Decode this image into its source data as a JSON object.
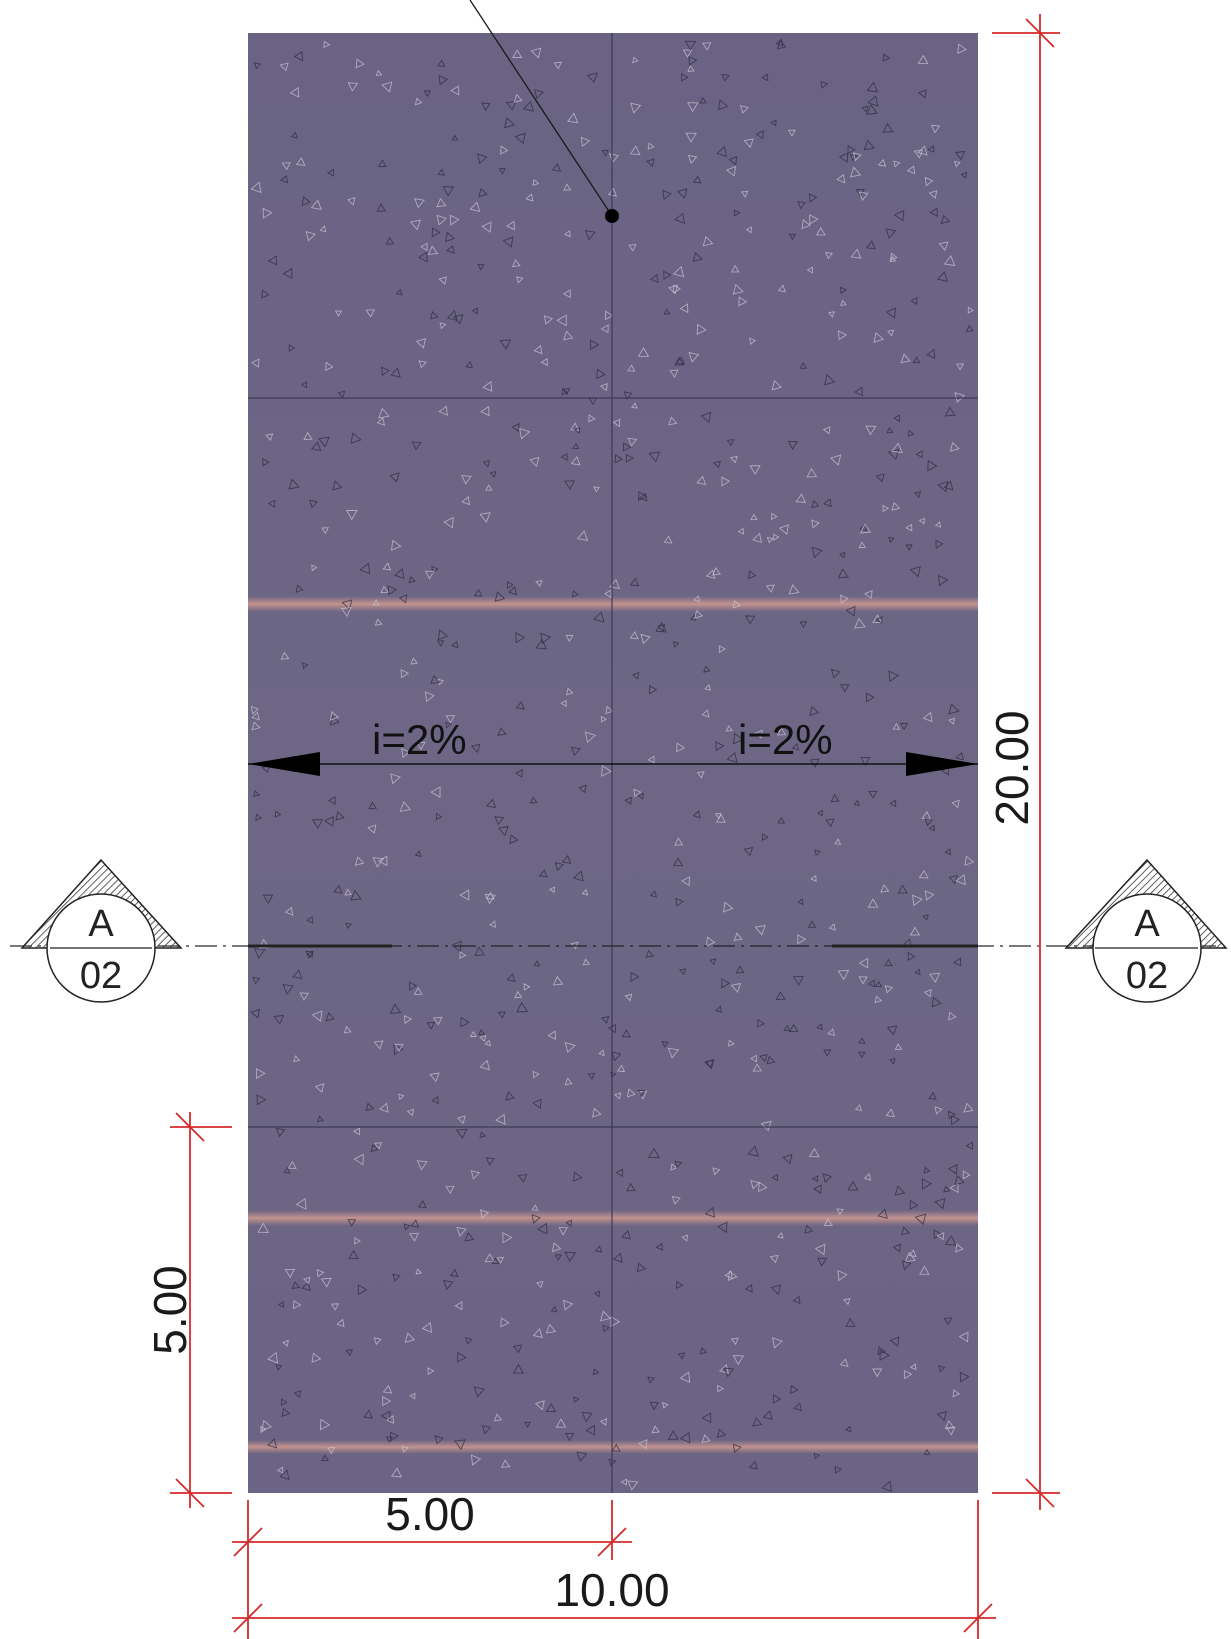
{
  "plan": {
    "slope_left": "i=2%",
    "slope_right": "i=2%"
  },
  "dimensions": {
    "height_total": "20.00",
    "width_total": "10.00",
    "width_half": "5.00",
    "height_segment": "5.00"
  },
  "section_markers": {
    "left": {
      "letter": "A",
      "sheet": "02"
    },
    "right": {
      "letter": "A",
      "sheet": "02"
    }
  },
  "colors": {
    "surface": "#6b6585",
    "surface_band": "#c9968d",
    "dimension_line": "#d62a2a",
    "linework": "#1a1a1a"
  }
}
